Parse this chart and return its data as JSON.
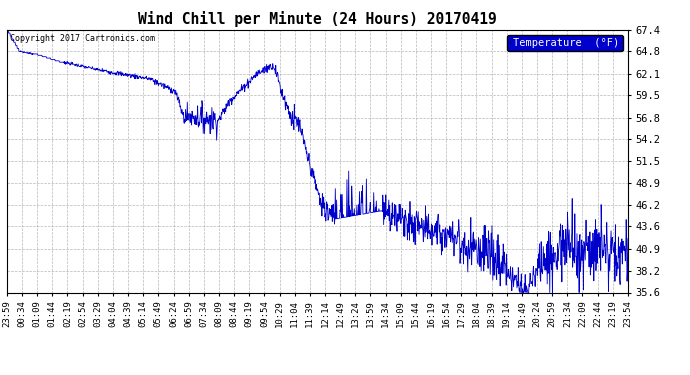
{
  "title": "Wind Chill per Minute (24 Hours) 20170419",
  "copyright_text": "Copyright 2017 Cartronics.com",
  "legend_label": "Temperature  (°F)",
  "line_color": "#0000cc",
  "background_color": "#ffffff",
  "grid_color": "#999999",
  "ylim": [
    35.6,
    67.4
  ],
  "yticks": [
    35.6,
    38.2,
    40.9,
    43.6,
    46.2,
    48.9,
    51.5,
    54.2,
    56.8,
    59.5,
    62.1,
    64.8,
    67.4
  ],
  "x_tick_labels": [
    "23:59",
    "00:34",
    "01:09",
    "01:44",
    "02:19",
    "02:54",
    "03:29",
    "04:04",
    "04:39",
    "05:14",
    "05:49",
    "06:24",
    "06:59",
    "07:34",
    "08:09",
    "08:44",
    "09:19",
    "09:54",
    "10:29",
    "11:04",
    "11:39",
    "12:14",
    "12:49",
    "13:24",
    "13:59",
    "14:34",
    "15:09",
    "15:44",
    "16:19",
    "16:54",
    "17:29",
    "18:04",
    "18:39",
    "19:14",
    "19:49",
    "20:24",
    "20:59",
    "21:34",
    "22:09",
    "22:44",
    "23:19",
    "23:54"
  ],
  "n_points": 1440,
  "figsize": [
    6.9,
    3.75
  ],
  "dpi": 100
}
